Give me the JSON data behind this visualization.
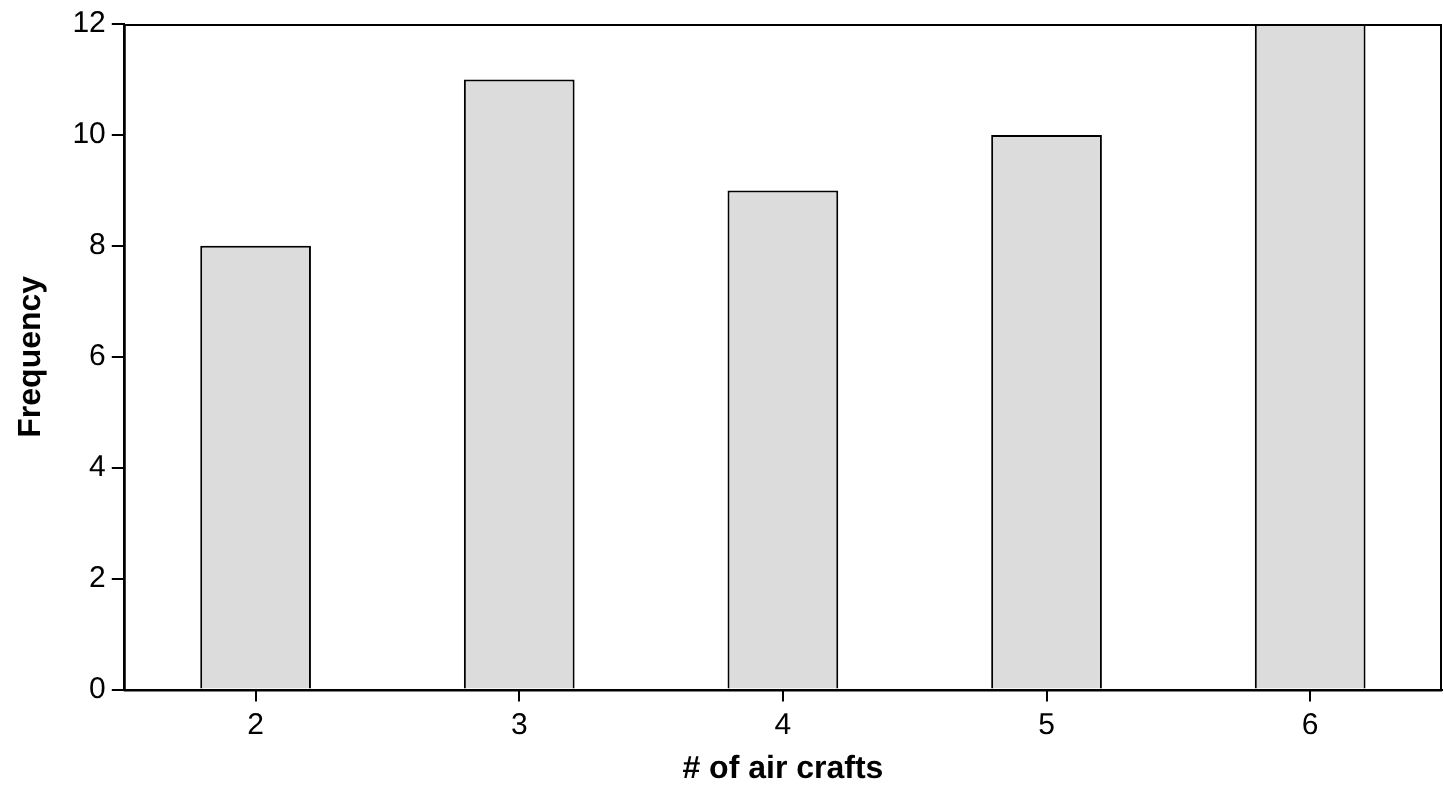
{
  "chart_data": {
    "type": "bar",
    "xlabel": "# of air crafts",
    "ylabel": "Frequency",
    "categories": [
      "2",
      "3",
      "4",
      "5",
      "6"
    ],
    "values": [
      8,
      11,
      9,
      10,
      12
    ],
    "color": "#dcdcdc",
    "ylim": [
      0,
      12
    ],
    "yticks": [
      0,
      2,
      4,
      6,
      8,
      10,
      12
    ],
    "grid": false,
    "legend": false
  }
}
